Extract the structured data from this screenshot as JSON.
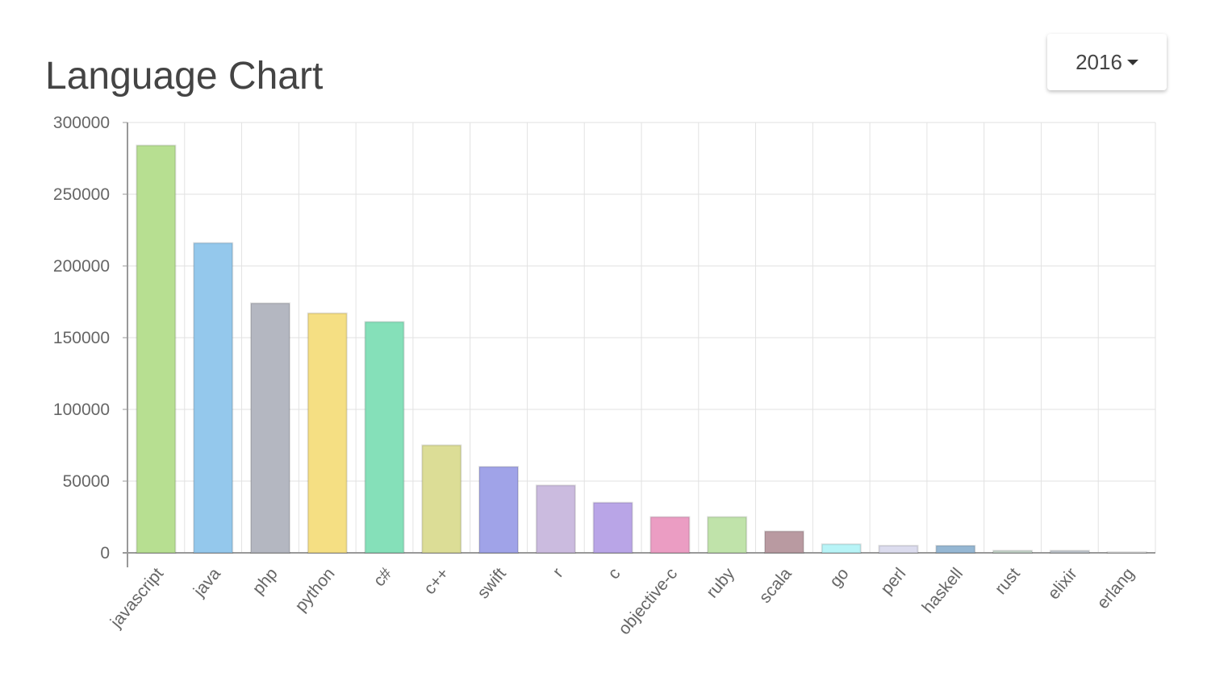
{
  "year_selector": {
    "label": "2016"
  },
  "chart_data": {
    "type": "bar",
    "title": "Language Chart",
    "categories": [
      "javascript",
      "java",
      "php",
      "python",
      "c#",
      "c++",
      "swift",
      "r",
      "c",
      "objective-c",
      "ruby",
      "scala",
      "go",
      "perl",
      "haskell",
      "rust",
      "elixir",
      "erlang"
    ],
    "values": [
      284000,
      216000,
      174000,
      167000,
      161000,
      75000,
      60000,
      47000,
      35000,
      25000,
      25000,
      15000,
      6000,
      5000,
      5000,
      1500,
      1500,
      500
    ],
    "colors": [
      "#b7df91",
      "#94c8ec",
      "#b4b7c1",
      "#f5df83",
      "#85e0b9",
      "#dcdd96",
      "#a0a3e8",
      "#cbbbdf",
      "#b9a5e7",
      "#eb9dc3",
      "#c0e3aa",
      "#b99aa1",
      "#b8f4f7",
      "#dcdcee",
      "#95b7d3",
      "#c8d8cc",
      "#c2c9d0",
      "#e2e2e2"
    ],
    "ylim": [
      0,
      300000
    ],
    "yticks": [
      0,
      50000,
      100000,
      150000,
      200000,
      250000,
      300000
    ],
    "grid": true
  }
}
